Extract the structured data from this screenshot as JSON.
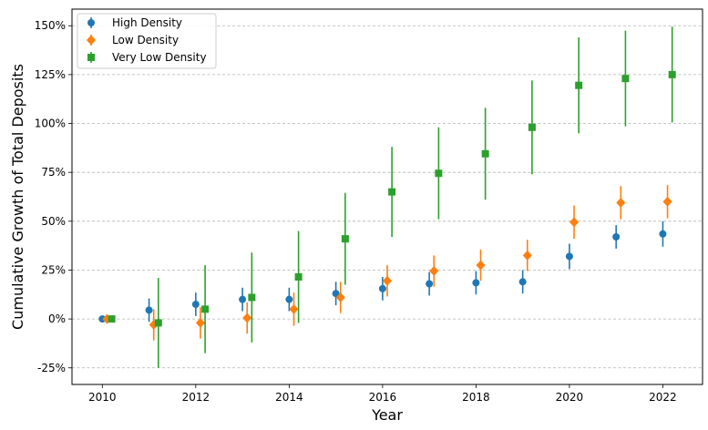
{
  "chart_data": {
    "type": "scatter",
    "title": "",
    "xlabel": "Year",
    "ylabel": "Cumulative Growth of Total Deposits",
    "xlim": [
      2009.35,
      2022.85
    ],
    "ylim": [
      -0.335,
      1.585
    ],
    "xticks": [
      2010,
      2012,
      2014,
      2016,
      2018,
      2020,
      2022
    ],
    "xtick_labels": [
      "2010",
      "2012",
      "2014",
      "2016",
      "2018",
      "2020",
      "2022"
    ],
    "yticks": [
      -0.25,
      0,
      0.25,
      0.5,
      0.75,
      1.0,
      1.25,
      1.5
    ],
    "ytick_labels": [
      "-25%",
      "0%",
      "25%",
      "50%",
      "75%",
      "100%",
      "125%",
      "150%"
    ],
    "grid": "y-dashed",
    "legend_position": "top-left",
    "series": [
      {
        "name": "High Density",
        "color": "#1f77b4",
        "marker": "circle",
        "x_offset": 0.0,
        "x": [
          2010,
          2011,
          2012,
          2013,
          2014,
          2015,
          2016,
          2017,
          2018,
          2019,
          2020,
          2021,
          2022
        ],
        "y": [
          0.0,
          0.045,
          0.075,
          0.1,
          0.1,
          0.13,
          0.155,
          0.18,
          0.185,
          0.19,
          0.32,
          0.42,
          0.435
        ],
        "err": [
          0.012,
          0.06,
          0.06,
          0.06,
          0.06,
          0.06,
          0.06,
          0.06,
          0.06,
          0.06,
          0.065,
          0.06,
          0.065
        ]
      },
      {
        "name": "Low Density",
        "color": "#ff7f0e",
        "marker": "diamond",
        "x_offset": 0.1,
        "x": [
          2010,
          2011,
          2012,
          2013,
          2014,
          2015,
          2016,
          2017,
          2018,
          2019,
          2020,
          2021,
          2022
        ],
        "y": [
          0.0,
          -0.03,
          -0.02,
          0.005,
          0.05,
          0.11,
          0.195,
          0.245,
          0.275,
          0.325,
          0.495,
          0.595,
          0.6
        ],
        "err": [
          0.015,
          0.08,
          0.08,
          0.08,
          0.085,
          0.08,
          0.08,
          0.08,
          0.08,
          0.08,
          0.085,
          0.085,
          0.085
        ]
      },
      {
        "name": "Very Low Density",
        "color": "#2ca02c",
        "marker": "square",
        "x_offset": 0.2,
        "x": [
          2010,
          2011,
          2012,
          2013,
          2014,
          2015,
          2016,
          2017,
          2018,
          2019,
          2020,
          2021,
          2022
        ],
        "y": [
          0.0,
          -0.02,
          0.05,
          0.11,
          0.215,
          0.41,
          0.65,
          0.745,
          0.845,
          0.98,
          1.195,
          1.23,
          1.25
        ],
        "err": [
          0.01,
          0.23,
          0.225,
          0.23,
          0.235,
          0.235,
          0.23,
          0.235,
          0.235,
          0.24,
          0.245,
          0.245,
          0.245
        ]
      }
    ]
  }
}
